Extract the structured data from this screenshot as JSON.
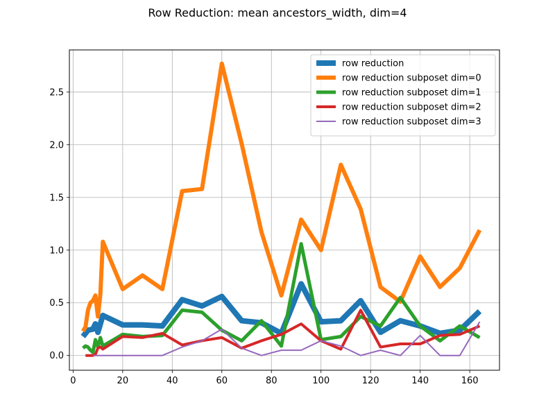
{
  "chart_data": {
    "type": "line",
    "title": "Row Reduction: mean ancestors_width, dim=4",
    "xlabel": "",
    "ylabel": "",
    "xlim": [
      -1.5,
      172.0
    ],
    "ylim": [
      -0.14,
      2.9
    ],
    "xticks": [
      0,
      20,
      40,
      60,
      80,
      100,
      120,
      140,
      160
    ],
    "yticks": [
      0.0,
      0.5,
      1.0,
      1.5,
      2.0,
      2.5
    ],
    "xtick_labels": [
      "0",
      "20",
      "40",
      "60",
      "80",
      "100",
      "120",
      "140",
      "160"
    ],
    "ytick_labels": [
      "0.0",
      "0.5",
      "1.0",
      "1.5",
      "2.0",
      "2.5"
    ],
    "grid": true,
    "legend_position": "top-right",
    "series": [
      {
        "name": "row reduction",
        "color": "#1f77b4",
        "linewidth": 8,
        "x": [
          4,
          6,
          8,
          9,
          10,
          12,
          20,
          28,
          36,
          44,
          52,
          60,
          68,
          76,
          84,
          92,
          100,
          108,
          116,
          124,
          132,
          140,
          148,
          156,
          164
        ],
        "y": [
          0.18,
          0.24,
          0.25,
          0.3,
          0.22,
          0.38,
          0.29,
          0.29,
          0.28,
          0.53,
          0.47,
          0.56,
          0.33,
          0.31,
          0.21,
          0.68,
          0.32,
          0.33,
          0.52,
          0.22,
          0.33,
          0.28,
          0.21,
          0.24,
          0.42
        ]
      },
      {
        "name": "row reduction subposet dim=0",
        "color": "#ff7f0e",
        "linewidth": 6,
        "x": [
          4,
          5,
          6,
          7,
          8,
          9,
          10,
          11,
          12,
          20,
          28,
          36,
          44,
          52,
          60,
          68,
          76,
          84,
          92,
          100,
          108,
          116,
          124,
          132,
          140,
          148,
          156,
          164
        ],
        "y": [
          0.23,
          0.27,
          0.43,
          0.5,
          0.52,
          0.57,
          0.37,
          0.58,
          1.08,
          0.63,
          0.76,
          0.63,
          1.56,
          1.58,
          2.77,
          2.01,
          1.17,
          0.57,
          1.29,
          1.0,
          1.81,
          1.39,
          0.65,
          0.51,
          0.94,
          0.65,
          0.83,
          1.19
        ]
      },
      {
        "name": "row reduction subposet dim=1",
        "color": "#2ca02c",
        "linewidth": 5,
        "x": [
          4,
          5,
          6,
          7,
          8,
          9,
          10,
          11,
          12,
          20,
          28,
          36,
          44,
          52,
          60,
          68,
          76,
          84,
          86,
          92,
          100,
          108,
          116,
          124,
          132,
          140,
          148,
          156,
          164
        ],
        "y": [
          0.07,
          0.09,
          0.08,
          0.05,
          0.03,
          0.15,
          0.08,
          0.17,
          0.09,
          0.2,
          0.18,
          0.19,
          0.43,
          0.41,
          0.24,
          0.14,
          0.33,
          0.09,
          0.33,
          1.06,
          0.15,
          0.18,
          0.37,
          0.28,
          0.55,
          0.28,
          0.14,
          0.28,
          0.17
        ]
      },
      {
        "name": "row reduction subposet dim=2",
        "color": "#d62728",
        "linewidth": 4,
        "x": [
          5,
          8,
          9,
          10,
          11,
          12,
          20,
          28,
          36,
          44,
          52,
          60,
          68,
          76,
          84,
          92,
          100,
          108,
          116,
          124,
          132,
          140,
          148,
          156,
          164
        ],
        "y": [
          0.0,
          0.0,
          0.01,
          0.07,
          0.08,
          0.06,
          0.18,
          0.17,
          0.21,
          0.1,
          0.14,
          0.17,
          0.07,
          0.14,
          0.2,
          0.3,
          0.14,
          0.06,
          0.43,
          0.08,
          0.11,
          0.11,
          0.19,
          0.2,
          0.28
        ]
      },
      {
        "name": "row reduction subposet dim=3",
        "color": "#9467bd",
        "linewidth": 2,
        "x": [
          8,
          10,
          12,
          20,
          28,
          36,
          44,
          52,
          60,
          68,
          76,
          84,
          92,
          100,
          108,
          116,
          124,
          132,
          140,
          148,
          156,
          164
        ],
        "y": [
          0.0,
          0.0,
          0.0,
          0.0,
          0.0,
          0.0,
          0.08,
          0.14,
          0.25,
          0.07,
          0.0,
          0.05,
          0.05,
          0.14,
          0.09,
          0.0,
          0.05,
          0.0,
          0.19,
          0.0,
          0.0,
          0.32
        ]
      }
    ]
  }
}
